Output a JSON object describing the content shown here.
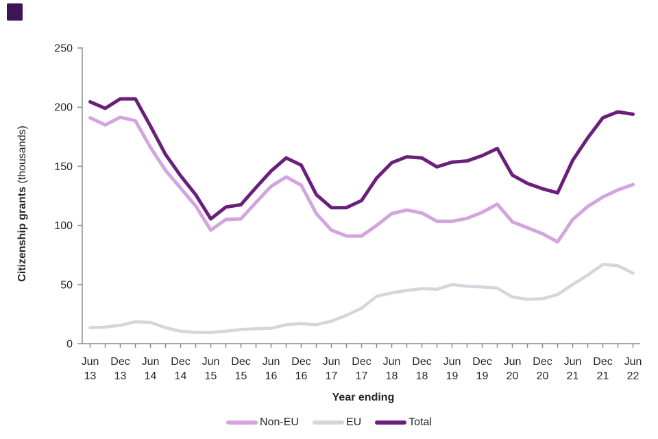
{
  "brand": {
    "logo_color": "#3e1458"
  },
  "axes": {
    "y_title_bold": "Citizenship grants",
    "y_title_regular": " (thousands)",
    "x_title": "Year ending"
  },
  "legend": {
    "items": [
      {
        "label": "Non-EU",
        "color": "#d3a5de"
      },
      {
        "label": "EU",
        "color": "#d9d3dc"
      },
      {
        "label": "Total",
        "color": "#6a1f7b"
      }
    ]
  },
  "chart_data": {
    "type": "line",
    "title": "",
    "xlabel": "Year ending",
    "ylabel": "Citizenship grants (thousands)",
    "ylim": [
      0,
      250
    ],
    "y_ticks": [
      0,
      50,
      100,
      150,
      200,
      250
    ],
    "grid": false,
    "legend_position": "bottom",
    "x": [
      "Jun 13",
      "Sep 13",
      "Dec 13",
      "Mar 14",
      "Jun 14",
      "Sep 14",
      "Dec 14",
      "Mar 15",
      "Jun 15",
      "Sep 15",
      "Dec 15",
      "Mar 16",
      "Jun 16",
      "Sep 16",
      "Dec 16",
      "Mar 17",
      "Jun 17",
      "Sep 17",
      "Dec 17",
      "Mar 18",
      "Jun 18",
      "Sep 18",
      "Dec 18",
      "Mar 19",
      "Jun 19",
      "Sep 19",
      "Dec 19",
      "Mar 20",
      "Jun 20",
      "Sep 20",
      "Dec 20",
      "Mar 21",
      "Jun 21",
      "Sep 21",
      "Dec 21",
      "Mar 22",
      "Jun 22"
    ],
    "x_axis_labels_shown": [
      "Jun 13",
      "Dec 13",
      "Jun 14",
      "Dec 14",
      "Jun 15",
      "Dec 15",
      "Jun 16",
      "Dec 16",
      "Jun 17",
      "Dec 17",
      "Jun 18",
      "Dec 18",
      "Jun 19",
      "Dec 19",
      "Jun 20",
      "Dec 20",
      "Jun 21",
      "Dec 21",
      "Jun 22"
    ],
    "series": [
      {
        "name": "Non-EU",
        "color": "#d3a5de",
        "values": [
          191,
          185,
          191.5,
          188.5,
          166,
          146.5,
          131.5,
          116.5,
          96,
          105,
          105.5,
          119.5,
          133,
          141,
          134,
          110,
          96,
          91,
          91,
          100,
          110,
          113,
          110.5,
          103.5,
          103.5,
          106,
          111,
          118,
          103,
          98,
          93,
          86,
          105,
          116,
          124,
          130,
          134.5
        ]
      },
      {
        "name": "EU",
        "color": "#d9d3dc",
        "values": [
          13.5,
          14,
          15.5,
          18.5,
          18,
          13.5,
          10.5,
          9.5,
          9.5,
          10.5,
          12,
          12.5,
          13,
          16,
          17,
          16,
          19,
          24,
          30,
          40,
          43,
          45,
          46.5,
          46,
          50,
          48.5,
          48,
          47,
          39.5,
          37.5,
          38,
          41.5,
          50,
          58,
          67,
          66,
          59.5
        ]
      },
      {
        "name": "Total",
        "color": "#6a1f7b",
        "values": [
          204.5,
          199,
          207,
          207,
          184,
          160,
          142,
          126,
          105.5,
          115.5,
          117.5,
          132,
          146,
          157,
          151,
          126,
          115,
          115,
          121,
          140,
          153,
          158,
          157,
          149.5,
          153.5,
          154.5,
          159,
          165,
          142.5,
          135.5,
          131,
          127.5,
          155,
          174,
          191,
          196,
          194
        ]
      }
    ]
  }
}
